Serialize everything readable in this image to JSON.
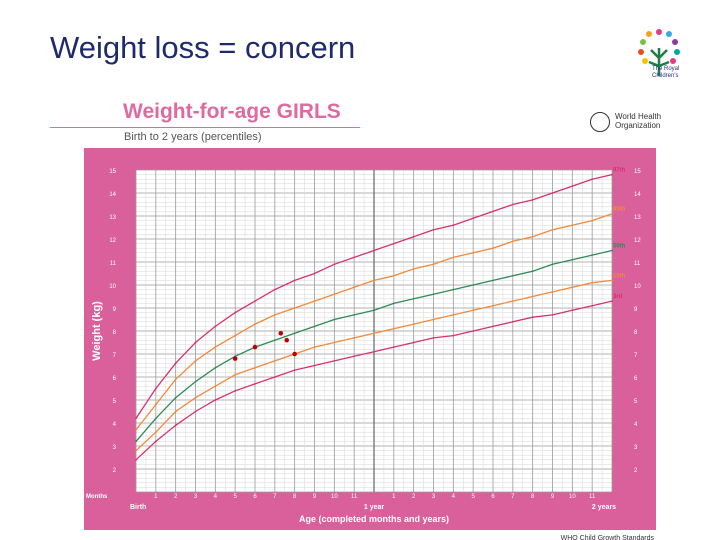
{
  "slide": {
    "title": "Weight loss = concern"
  },
  "logo": {
    "line1": "The Royal",
    "line2": "Children's"
  },
  "who": {
    "line1": "World Health",
    "line2": "Organization"
  },
  "colors": {
    "pink": "#d9609a",
    "title": "#1f2a6b",
    "p97": "#d6336c",
    "p85": "#f08a3c",
    "p50": "#2e8b57",
    "p15": "#f08a3c",
    "p3": "#d6336c",
    "dot": "#c00000"
  },
  "chart_data": {
    "type": "line",
    "title": "Weight-for-age GIRLS",
    "subtitle": "Birth to 2 years (percentiles)",
    "ylabel": "Weight (kg)",
    "xlabel": "Age (completed months and years)",
    "footer": "WHO Child Growth Standards",
    "months_label": "Months",
    "birth_label": "Birth",
    "year1_label": "1 year",
    "year2_label": "2 years",
    "ylim": [
      1,
      15
    ],
    "xlim": [
      0,
      24
    ],
    "y_ticks": [
      2,
      3,
      4,
      5,
      6,
      7,
      8,
      9,
      10,
      11,
      12,
      13,
      14,
      15
    ],
    "x_tick_labels": [
      "1",
      "2",
      "3",
      "4",
      "5",
      "6",
      "7",
      "8",
      "9",
      "10",
      "11",
      "1",
      "2",
      "3",
      "4",
      "5",
      "6",
      "7",
      "8",
      "9",
      "10",
      "11"
    ],
    "x": [
      0,
      1,
      2,
      3,
      4,
      5,
      6,
      7,
      8,
      9,
      10,
      11,
      12,
      13,
      14,
      15,
      16,
      17,
      18,
      19,
      20,
      21,
      22,
      23,
      24
    ],
    "series": [
      {
        "name": "97th",
        "values": [
          4.2,
          5.5,
          6.6,
          7.5,
          8.2,
          8.8,
          9.3,
          9.8,
          10.2,
          10.5,
          10.9,
          11.2,
          11.5,
          11.8,
          12.1,
          12.4,
          12.6,
          12.9,
          13.2,
          13.5,
          13.7,
          14.0,
          14.3,
          14.6,
          14.8
        ]
      },
      {
        "name": "85th",
        "values": [
          3.7,
          4.8,
          5.9,
          6.7,
          7.3,
          7.8,
          8.3,
          8.7,
          9.0,
          9.3,
          9.6,
          9.9,
          10.2,
          10.4,
          10.7,
          10.9,
          11.2,
          11.4,
          11.6,
          11.9,
          12.1,
          12.4,
          12.6,
          12.8,
          13.1
        ]
      },
      {
        "name": "50th",
        "values": [
          3.2,
          4.2,
          5.1,
          5.8,
          6.4,
          6.9,
          7.3,
          7.6,
          7.9,
          8.2,
          8.5,
          8.7,
          8.9,
          9.2,
          9.4,
          9.6,
          9.8,
          10.0,
          10.2,
          10.4,
          10.6,
          10.9,
          11.1,
          11.3,
          11.5
        ]
      },
      {
        "name": "15th",
        "values": [
          2.8,
          3.6,
          4.5,
          5.1,
          5.6,
          6.1,
          6.4,
          6.7,
          7.0,
          7.3,
          7.5,
          7.7,
          7.9,
          8.1,
          8.3,
          8.5,
          8.7,
          8.9,
          9.1,
          9.3,
          9.5,
          9.7,
          9.9,
          10.1,
          10.2
        ]
      },
      {
        "name": "3rd",
        "values": [
          2.4,
          3.2,
          3.9,
          4.5,
          5.0,
          5.4,
          5.7,
          6.0,
          6.3,
          6.5,
          6.7,
          6.9,
          7.1,
          7.3,
          7.5,
          7.7,
          7.8,
          8.0,
          8.2,
          8.4,
          8.6,
          8.7,
          8.9,
          9.1,
          9.3
        ]
      }
    ],
    "series_labels": [
      "97th",
      "85th",
      "50th",
      "15th",
      "3rd"
    ],
    "patient_points": [
      {
        "x": 5.0,
        "y": 6.8
      },
      {
        "x": 6.0,
        "y": 7.3
      },
      {
        "x": 7.3,
        "y": 7.9
      },
      {
        "x": 7.6,
        "y": 7.6
      },
      {
        "x": 8.0,
        "y": 7.0
      }
    ]
  }
}
